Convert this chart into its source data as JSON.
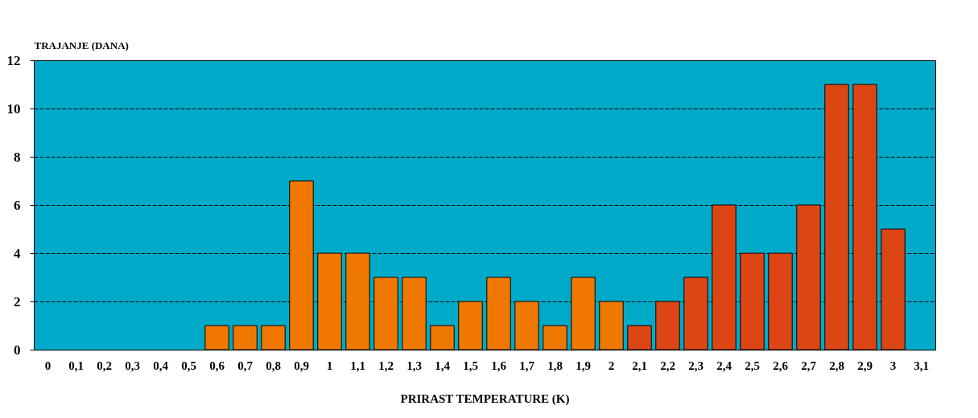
{
  "chart_data": {
    "type": "bar",
    "ylabel": "TRAJANJE (DANA)",
    "xlabel": "PRIRAST TEMPERATURE (K)",
    "categories": [
      "0",
      "0,1",
      "0,2",
      "0,3",
      "0,4",
      "0,5",
      "0,6",
      "0,7",
      "0,8",
      "0,9",
      "1",
      "1,1",
      "1,2",
      "1,3",
      "1,4",
      "1,5",
      "1,6",
      "1,7",
      "1,8",
      "1,9",
      "2",
      "2,1",
      "2,2",
      "2,3",
      "2,4",
      "2,5",
      "2,6",
      "2,7",
      "2,8",
      "2,9",
      "3",
      "3,1"
    ],
    "values": [
      null,
      null,
      null,
      null,
      null,
      null,
      1,
      1,
      1,
      7,
      4,
      4,
      3,
      3,
      1,
      2,
      3,
      2,
      1,
      3,
      2,
      1,
      2,
      3,
      6,
      4,
      4,
      6,
      11,
      11,
      5,
      null
    ],
    "colors": [
      "#f07800",
      "#f07800",
      "#f07800",
      "#f07800",
      "#f07800",
      "#f07800",
      "#f07800",
      "#f07800",
      "#f07800",
      "#f07800",
      "#f07800",
      "#f07800",
      "#f07800",
      "#f07800",
      "#f07800",
      "#f07800",
      "#f07800",
      "#f07800",
      "#f07800",
      "#f07800",
      "#f07800",
      "#dc4614",
      "#dc4614",
      "#dc4614",
      "#dc4614",
      "#dc4614",
      "#dc4614",
      "#dc4614",
      "#dc4614",
      "#dc4614",
      "#dc4614",
      "#dc4614"
    ],
    "ylim": [
      0,
      12
    ],
    "yticks": [
      0,
      2,
      4,
      6,
      8,
      10,
      12
    ],
    "grid": "y"
  }
}
